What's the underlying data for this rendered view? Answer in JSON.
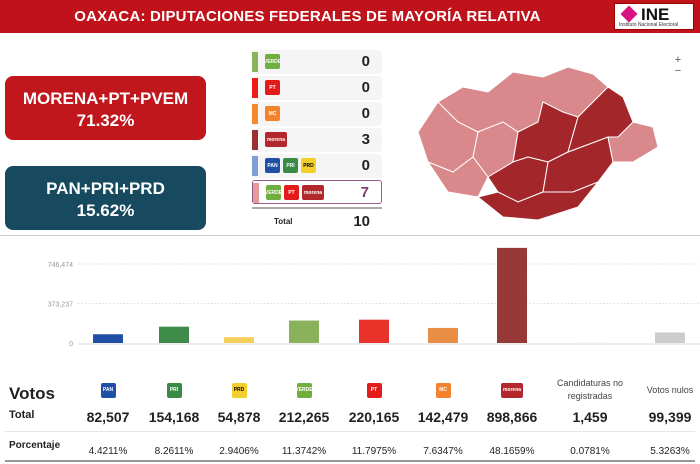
{
  "header": {
    "title": "OAXACA: DIPUTACIONES FEDERALES DE MAYORÍA RELATIVA",
    "logo_text": "INE",
    "logo_sub": "Instituto Nacional Electoral"
  },
  "coalitions": [
    {
      "name": "MORENA+PT+PVEM",
      "pct": "71.32%",
      "color": "#c0161c"
    },
    {
      "name": "PAN+PRI+PRD",
      "pct": "15.62%",
      "color": "#174a5e"
    }
  ],
  "districts": {
    "rows": [
      {
        "color": "#8bb456",
        "logos": [
          "verde"
        ],
        "value": "0"
      },
      {
        "color": "#ee1c1c",
        "logos": [
          "pt"
        ],
        "value": "0"
      },
      {
        "color": "#f48a2c",
        "logos": [
          "mc"
        ],
        "value": "0"
      },
      {
        "color": "#9c2f31",
        "logos": [
          "morena"
        ],
        "value": "3"
      },
      {
        "color": "#7f9fd4",
        "logos": [
          "pan",
          "pri",
          "prd"
        ],
        "value": "0"
      },
      {
        "color": "#e69a9a",
        "logos": [
          "verde",
          "pt",
          "morena"
        ],
        "value": "7"
      }
    ],
    "total_label": "Total",
    "total": "10"
  },
  "map": {
    "zoom_in": "+",
    "zoom_out": "−"
  },
  "chart_data": {
    "type": "bar",
    "categories": [
      "PAN",
      "PRI",
      "PRD",
      "PVEM",
      "PT",
      "MC",
      "MORENA",
      "Candidaturas no registradas",
      "Votos nulos"
    ],
    "values": [
      82507,
      154168,
      54878,
      212265,
      220165,
      142479,
      898866,
      1459,
      99399
    ],
    "colors": [
      "#1f4fa6",
      "#3e8b4a",
      "#f4cf5b",
      "#8ab25a",
      "#e8322a",
      "#e88f45",
      "#973a37",
      "#cccccc",
      "#cccccc"
    ],
    "yticks": [
      0,
      373237,
      746474
    ],
    "ytick_labels": [
      "0",
      "373,237",
      "746,474"
    ],
    "ylim": [
      0,
      950000
    ]
  },
  "votes": {
    "title": "Votos",
    "total_label": "Total",
    "pct_label": "Porcentaje",
    "columns": [
      {
        "logo": "pan",
        "total": "82,507",
        "pct": "4.4211%"
      },
      {
        "logo": "pri",
        "total": "154,168",
        "pct": "8.2611%"
      },
      {
        "logo": "prd",
        "total": "54,878",
        "pct": "2.9406%"
      },
      {
        "logo": "verde",
        "total": "212,265",
        "pct": "11.3742%"
      },
      {
        "logo": "pt",
        "total": "220,165",
        "pct": "11.7975%"
      },
      {
        "logo": "mc",
        "total": "142,479",
        "pct": "7.6347%"
      },
      {
        "logo": "morena",
        "total": "898,866",
        "pct": "48.1659%"
      },
      {
        "label": "Candidaturas no registradas",
        "total": "1,459",
        "pct": "0.0781%"
      },
      {
        "label": "Votos nulos",
        "total": "99,399",
        "pct": "5.3263%"
      }
    ]
  },
  "logo_text": {
    "verde": "VERDE",
    "pt": "PT",
    "mc": "MC",
    "morena": "morena",
    "pan": "PAN",
    "pri": "PRI",
    "prd": "PRD"
  }
}
